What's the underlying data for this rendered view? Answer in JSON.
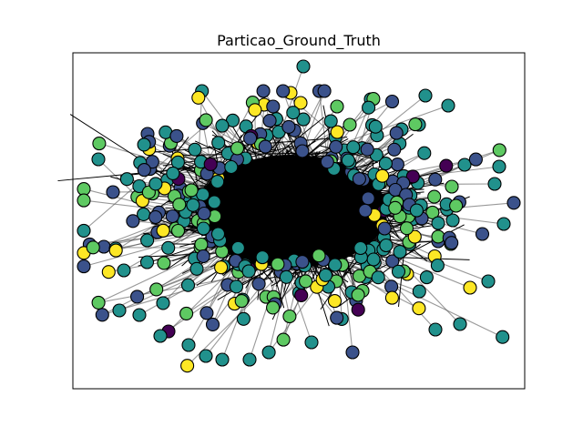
{
  "title": "Particao_Ground_Truth",
  "graph": {
    "type": "network",
    "palette": [
      "#440154",
      "#3b528b",
      "#21918c",
      "#5ec962",
      "#fde725"
    ],
    "core_color": "#000000",
    "frame_color": "#000000",
    "background": "#ffffff"
  }
}
